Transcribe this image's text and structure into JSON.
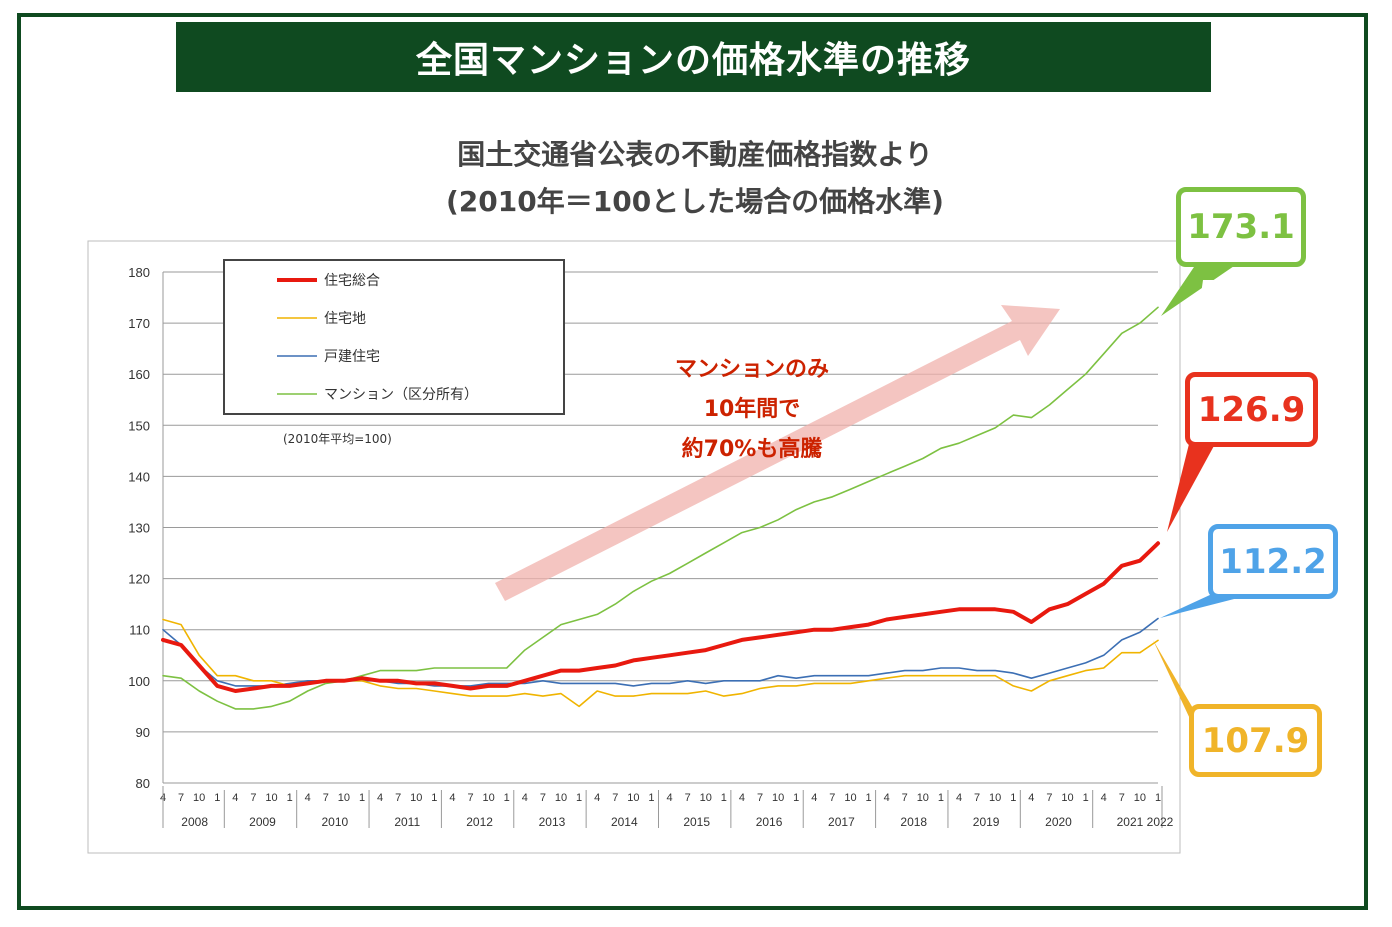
{
  "header": {
    "title": "全国マンションの価格水準の推移",
    "subtitle_1": "国土交通省公表の不動産価格指数より",
    "subtitle_2": "(2010年＝100とした場合の価格水準)"
  },
  "annotation": {
    "line1": "マンションのみ",
    "line2": "10年間で",
    "line3": "約70%も高騰"
  },
  "callouts": [
    {
      "name": "mansion",
      "label": "173.1",
      "color": "#7dc142"
    },
    {
      "name": "total",
      "label": "126.9",
      "color": "#e8321e"
    },
    {
      "name": "house",
      "label": "112.2",
      "color": "#4fa3e8"
    },
    {
      "name": "land",
      "label": "107.9",
      "color": "#f0b429"
    }
  ],
  "chart_data": {
    "type": "line",
    "note": "(2010年平均=100)",
    "ylim": [
      80,
      180
    ],
    "yticks": [
      "80",
      "90",
      "100",
      "110",
      "120",
      "130",
      "140",
      "150",
      "160",
      "170",
      "180"
    ],
    "month_ticks": [
      "4",
      "7",
      "10",
      "1"
    ],
    "years": [
      "2008",
      "2009",
      "2010",
      "2011",
      "2012",
      "2013",
      "2014",
      "2015",
      "2016",
      "2017",
      "2018",
      "2019",
      "2020",
      "2021",
      "2022"
    ],
    "x_start": "2008-04",
    "x_end": "2022-01",
    "series": [
      {
        "name": "住宅総合",
        "color": "#e8190f",
        "width": 4,
        "points": [
          [
            2008.25,
            108
          ],
          [
            2008.5,
            107
          ],
          [
            2008.75,
            103
          ],
          [
            2009.0,
            99
          ],
          [
            2009.25,
            98
          ],
          [
            2009.5,
            98.5
          ],
          [
            2009.75,
            99
          ],
          [
            2010.0,
            99
          ],
          [
            2010.25,
            99.5
          ],
          [
            2010.5,
            100
          ],
          [
            2010.75,
            100
          ],
          [
            2011.0,
            100.5
          ],
          [
            2011.25,
            100
          ],
          [
            2011.5,
            100
          ],
          [
            2011.75,
            99.5
          ],
          [
            2012.0,
            99.5
          ],
          [
            2012.25,
            99
          ],
          [
            2012.5,
            98.5
          ],
          [
            2012.75,
            99
          ],
          [
            2013.0,
            99
          ],
          [
            2013.25,
            100
          ],
          [
            2013.5,
            101
          ],
          [
            2013.75,
            102
          ],
          [
            2014.0,
            102
          ],
          [
            2014.25,
            102.5
          ],
          [
            2014.5,
            103
          ],
          [
            2014.75,
            104
          ],
          [
            2015.0,
            104.5
          ],
          [
            2015.25,
            105
          ],
          [
            2015.5,
            105.5
          ],
          [
            2015.75,
            106
          ],
          [
            2016.0,
            107
          ],
          [
            2016.25,
            108
          ],
          [
            2016.5,
            108.5
          ],
          [
            2016.75,
            109
          ],
          [
            2017.0,
            109.5
          ],
          [
            2017.25,
            110
          ],
          [
            2017.5,
            110
          ],
          [
            2017.75,
            110.5
          ],
          [
            2018.0,
            111
          ],
          [
            2018.25,
            112
          ],
          [
            2018.5,
            112.5
          ],
          [
            2018.75,
            113
          ],
          [
            2019.0,
            113.5
          ],
          [
            2019.25,
            114
          ],
          [
            2019.5,
            114
          ],
          [
            2019.75,
            114
          ],
          [
            2020.0,
            113.5
          ],
          [
            2020.25,
            111.5
          ],
          [
            2020.5,
            114
          ],
          [
            2020.75,
            115
          ],
          [
            2021.0,
            117
          ],
          [
            2021.25,
            119
          ],
          [
            2021.5,
            122.5
          ],
          [
            2021.75,
            123.5
          ],
          [
            2022.0,
            126.9
          ]
        ]
      },
      {
        "name": "住宅地",
        "color": "#f0b400",
        "width": 1.6,
        "points": [
          [
            2008.25,
            112
          ],
          [
            2008.5,
            111
          ],
          [
            2008.75,
            105
          ],
          [
            2009.0,
            101
          ],
          [
            2009.25,
            101
          ],
          [
            2009.5,
            100
          ],
          [
            2009.75,
            100
          ],
          [
            2010.0,
            99
          ],
          [
            2010.25,
            99.5
          ],
          [
            2010.5,
            100
          ],
          [
            2010.75,
            100
          ],
          [
            2011.0,
            100
          ],
          [
            2011.25,
            99
          ],
          [
            2011.5,
            98.5
          ],
          [
            2011.75,
            98.5
          ],
          [
            2012.0,
            98
          ],
          [
            2012.25,
            97.5
          ],
          [
            2012.5,
            97
          ],
          [
            2012.75,
            97
          ],
          [
            2013.0,
            97
          ],
          [
            2013.25,
            97.5
          ],
          [
            2013.5,
            97
          ],
          [
            2013.75,
            97.5
          ],
          [
            2014.0,
            95
          ],
          [
            2014.25,
            98
          ],
          [
            2014.5,
            97
          ],
          [
            2014.75,
            97
          ],
          [
            2015.0,
            97.5
          ],
          [
            2015.25,
            97.5
          ],
          [
            2015.5,
            97.5
          ],
          [
            2015.75,
            98
          ],
          [
            2016.0,
            97
          ],
          [
            2016.25,
            97.5
          ],
          [
            2016.5,
            98.5
          ],
          [
            2016.75,
            99
          ],
          [
            2017.0,
            99
          ],
          [
            2017.25,
            99.5
          ],
          [
            2017.5,
            99.5
          ],
          [
            2017.75,
            99.5
          ],
          [
            2018.0,
            100
          ],
          [
            2018.25,
            100.5
          ],
          [
            2018.5,
            101
          ],
          [
            2018.75,
            101
          ],
          [
            2019.0,
            101
          ],
          [
            2019.25,
            101
          ],
          [
            2019.5,
            101
          ],
          [
            2019.75,
            101
          ],
          [
            2020.0,
            99
          ],
          [
            2020.25,
            98
          ],
          [
            2020.5,
            100
          ],
          [
            2020.75,
            101
          ],
          [
            2021.0,
            102
          ],
          [
            2021.25,
            102.5
          ],
          [
            2021.5,
            105.5
          ],
          [
            2021.75,
            105.5
          ],
          [
            2022.0,
            107.9
          ]
        ]
      },
      {
        "name": "戸建住宅",
        "color": "#3c6fb4",
        "width": 1.6,
        "points": [
          [
            2008.25,
            110
          ],
          [
            2008.5,
            107
          ],
          [
            2008.75,
            103
          ],
          [
            2009.0,
            100
          ],
          [
            2009.25,
            99
          ],
          [
            2009.5,
            99
          ],
          [
            2009.75,
            99
          ],
          [
            2010.0,
            99.5
          ],
          [
            2010.25,
            100
          ],
          [
            2010.5,
            100
          ],
          [
            2010.75,
            100
          ],
          [
            2011.0,
            100
          ],
          [
            2011.25,
            100
          ],
          [
            2011.5,
            99.5
          ],
          [
            2011.75,
            99.5
          ],
          [
            2012.0,
            99
          ],
          [
            2012.25,
            99
          ],
          [
            2012.5,
            99
          ],
          [
            2012.75,
            99.5
          ],
          [
            2013.0,
            99.5
          ],
          [
            2013.25,
            99.5
          ],
          [
            2013.5,
            100
          ],
          [
            2013.75,
            99.5
          ],
          [
            2014.0,
            99.5
          ],
          [
            2014.25,
            99.5
          ],
          [
            2014.5,
            99.5
          ],
          [
            2014.75,
            99
          ],
          [
            2015.0,
            99.5
          ],
          [
            2015.25,
            99.5
          ],
          [
            2015.5,
            100
          ],
          [
            2015.75,
            99.5
          ],
          [
            2016.0,
            100
          ],
          [
            2016.25,
            100
          ],
          [
            2016.5,
            100
          ],
          [
            2016.75,
            101
          ],
          [
            2017.0,
            100.5
          ],
          [
            2017.25,
            101
          ],
          [
            2017.5,
            101
          ],
          [
            2017.75,
            101
          ],
          [
            2018.0,
            101
          ],
          [
            2018.25,
            101.5
          ],
          [
            2018.5,
            102
          ],
          [
            2018.75,
            102
          ],
          [
            2019.0,
            102.5
          ],
          [
            2019.25,
            102.5
          ],
          [
            2019.5,
            102
          ],
          [
            2019.75,
            102
          ],
          [
            2020.0,
            101.5
          ],
          [
            2020.25,
            100.5
          ],
          [
            2020.5,
            101.5
          ],
          [
            2020.75,
            102.5
          ],
          [
            2021.0,
            103.5
          ],
          [
            2021.25,
            105
          ],
          [
            2021.5,
            108
          ],
          [
            2021.75,
            109.5
          ],
          [
            2022.0,
            112.2
          ]
        ]
      },
      {
        "name": "マンション（区分所有）",
        "color": "#7dc142",
        "width": 1.6,
        "points": [
          [
            2008.25,
            101
          ],
          [
            2008.5,
            100.5
          ],
          [
            2008.75,
            98
          ],
          [
            2009.0,
            96
          ],
          [
            2009.25,
            94.5
          ],
          [
            2009.5,
            94.5
          ],
          [
            2009.75,
            95
          ],
          [
            2010.0,
            96
          ],
          [
            2010.25,
            98
          ],
          [
            2010.5,
            99.5
          ],
          [
            2010.75,
            100
          ],
          [
            2011.0,
            101
          ],
          [
            2011.25,
            102
          ],
          [
            2011.5,
            102
          ],
          [
            2011.75,
            102
          ],
          [
            2012.0,
            102.5
          ],
          [
            2012.25,
            102.5
          ],
          [
            2012.5,
            102.5
          ],
          [
            2012.75,
            102.5
          ],
          [
            2013.0,
            102.5
          ],
          [
            2013.25,
            106
          ],
          [
            2013.5,
            108.5
          ],
          [
            2013.75,
            111
          ],
          [
            2014.0,
            112
          ],
          [
            2014.25,
            113
          ],
          [
            2014.5,
            115
          ],
          [
            2014.75,
            117.5
          ],
          [
            2015.0,
            119.5
          ],
          [
            2015.25,
            121
          ],
          [
            2015.5,
            123
          ],
          [
            2015.75,
            125
          ],
          [
            2016.0,
            127
          ],
          [
            2016.25,
            129
          ],
          [
            2016.5,
            130
          ],
          [
            2016.75,
            131.5
          ],
          [
            2017.0,
            133.5
          ],
          [
            2017.25,
            135
          ],
          [
            2017.5,
            136
          ],
          [
            2017.75,
            137.5
          ],
          [
            2018.0,
            139
          ],
          [
            2018.25,
            140.5
          ],
          [
            2018.5,
            142
          ],
          [
            2018.75,
            143.5
          ],
          [
            2019.0,
            145.5
          ],
          [
            2019.25,
            146.5
          ],
          [
            2019.5,
            148
          ],
          [
            2019.75,
            149.5
          ],
          [
            2020.0,
            152
          ],
          [
            2020.25,
            151.5
          ],
          [
            2020.5,
            154
          ],
          [
            2020.75,
            157
          ],
          [
            2021.0,
            160
          ],
          [
            2021.25,
            164
          ],
          [
            2021.5,
            168
          ],
          [
            2021.75,
            170
          ],
          [
            2022.0,
            173.1
          ]
        ]
      }
    ]
  }
}
